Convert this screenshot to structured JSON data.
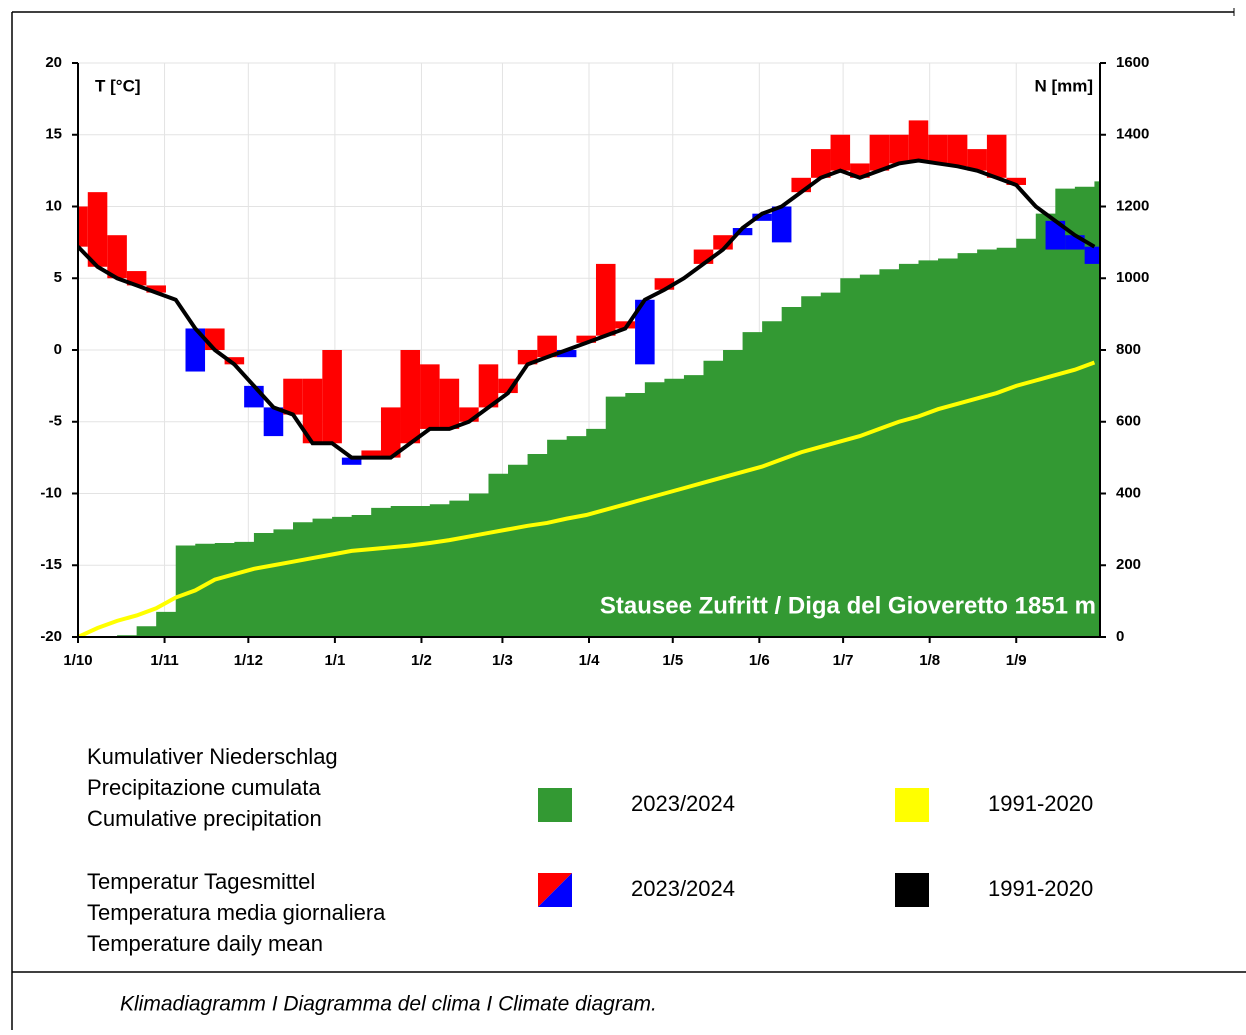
{
  "chart_data": {
    "type": "climate",
    "annotation": "Stausee Zufritt / Diga del Gioveretto 1851 m",
    "y_label": "T [°C]",
    "y2_label": "N [mm]",
    "caption": "Klimadiagramm I Diagramma del clima I Climate diagram.",
    "grid": true,
    "xlim": [
      0,
      366
    ],
    "xticks": [
      {
        "value": 0,
        "label": "1/10"
      },
      {
        "value": 31,
        "label": "1/11"
      },
      {
        "value": 61,
        "label": "1/12"
      },
      {
        "value": 92,
        "label": "1/1"
      },
      {
        "value": 123,
        "label": "1/2"
      },
      {
        "value": 152,
        "label": "1/3"
      },
      {
        "value": 183,
        "label": "1/4"
      },
      {
        "value": 213,
        "label": "1/5"
      },
      {
        "value": 244,
        "label": "1/6"
      },
      {
        "value": 274,
        "label": "1/7"
      },
      {
        "value": 305,
        "label": "1/8"
      },
      {
        "value": 336,
        "label": "1/9"
      }
    ],
    "ylim": [
      -20,
      20
    ],
    "yticks": [
      -20,
      -15,
      -10,
      -5,
      0,
      5,
      10,
      15,
      20
    ],
    "y2lim": [
      0,
      1600
    ],
    "y2ticks": [
      0,
      200,
      400,
      600,
      800,
      1000,
      1200,
      1400,
      1600
    ],
    "x": [
      0,
      7,
      14,
      21,
      28,
      35,
      42,
      49,
      56,
      63,
      70,
      77,
      84,
      91,
      98,
      105,
      112,
      119,
      126,
      133,
      140,
      147,
      154,
      161,
      168,
      175,
      182,
      189,
      196,
      203,
      210,
      217,
      224,
      231,
      238,
      245,
      252,
      259,
      266,
      273,
      280,
      287,
      294,
      301,
      308,
      315,
      322,
      329,
      336,
      343,
      350,
      357,
      364
    ],
    "series": [
      {
        "name": "2023/2024",
        "type": "range-bar",
        "color": "#ff0000",
        "color_below": "#0000ff",
        "legend_group": 1,
        "values": [
          10,
          11,
          8,
          5.5,
          4.5,
          3.5,
          -1.5,
          1.5,
          -0.5,
          -4,
          -6,
          -2,
          -2,
          0,
          -8,
          -7,
          -4,
          0,
          -1,
          -2,
          -4,
          -1,
          -2,
          0,
          1,
          -0.5,
          1,
          6,
          2,
          -1,
          5,
          5,
          7,
          8,
          8,
          9,
          7.5,
          12,
          14,
          15,
          13,
          15,
          15,
          16,
          15,
          15,
          14,
          15,
          12,
          10,
          7,
          7,
          6
        ]
      },
      {
        "name": "1991-2020",
        "type": "line",
        "color": "#000000",
        "legend_group": 1,
        "values": [
          7.2,
          5.8,
          5,
          4.5,
          4,
          3.5,
          1.5,
          0,
          -1,
          -2.5,
          -4,
          -4.5,
          -6.5,
          -6.5,
          -7.5,
          -7.5,
          -7.5,
          -6.5,
          -5.5,
          -5.5,
          -5,
          -4,
          -3,
          -1,
          -0.5,
          0,
          0.5,
          1,
          1.5,
          3.5,
          4.2,
          5,
          6,
          7,
          8.5,
          9.5,
          10,
          11,
          12,
          12.5,
          12,
          12.5,
          13,
          13.2,
          13,
          12.8,
          12.5,
          12,
          11.5,
          10,
          9,
          8,
          7.2
        ]
      },
      {
        "name": "2023/2024",
        "type": "step-area",
        "axis": "y2",
        "color": "#339933",
        "legend_group": 0,
        "values": [
          0,
          0,
          5,
          30,
          70,
          255,
          260,
          262,
          265,
          290,
          300,
          320,
          330,
          335,
          340,
          360,
          365,
          365,
          370,
          380,
          400,
          455,
          480,
          510,
          550,
          560,
          580,
          670,
          680,
          710,
          720,
          730,
          770,
          800,
          850,
          880,
          920,
          950,
          960,
          1000,
          1010,
          1025,
          1040,
          1050,
          1055,
          1070,
          1080,
          1085,
          1110,
          1180,
          1250,
          1255,
          1270
        ]
      },
      {
        "name": "1991-2020",
        "type": "line",
        "axis": "y2",
        "color": "#ffff00",
        "legend_group": 0,
        "values": [
          0,
          25,
          45,
          60,
          80,
          110,
          130,
          160,
          175,
          190,
          200,
          210,
          220,
          230,
          240,
          245,
          250,
          255,
          262,
          270,
          280,
          290,
          300,
          310,
          318,
          330,
          340,
          355,
          370,
          385,
          400,
          415,
          430,
          445,
          460,
          475,
          495,
          515,
          530,
          545,
          560,
          580,
          600,
          615,
          635,
          650,
          665,
          680,
          700,
          715,
          730,
          745,
          765
        ]
      }
    ],
    "legend_groups": [
      [
        "Kumulativer Niederschlag",
        "Precipitazione cumulata",
        "Cumulative precipitation"
      ],
      [
        "Temperatur Tagesmittel",
        "Temperatura media giornaliera",
        "Temperature daily mean"
      ]
    ]
  }
}
